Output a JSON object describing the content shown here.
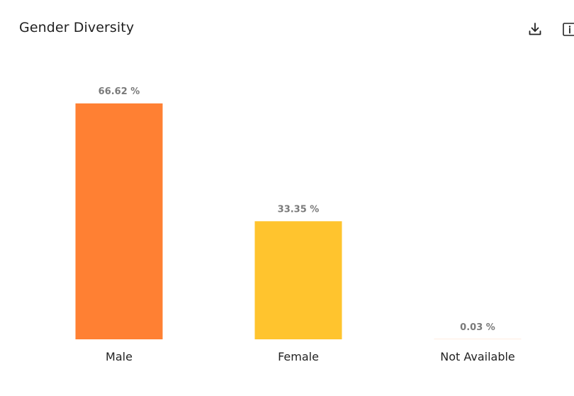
{
  "header": {
    "title": "Gender Diversity"
  },
  "icons": {
    "download": "download-icon",
    "info": "info-icon"
  },
  "colors": {
    "male": "#FF8033",
    "female": "#FFC42E",
    "not_available": "#FF8033",
    "value_label": "#7a7a7a"
  },
  "chart_data": {
    "type": "bar",
    "title": "Gender Diversity",
    "xlabel": "",
    "ylabel": "",
    "categories": [
      "Male",
      "Female",
      "Not Available"
    ],
    "values": [
      66.62,
      33.35,
      0.03
    ],
    "value_labels": [
      "66.62 %",
      "33.35 %",
      "0.03 %"
    ],
    "ylim": [
      0,
      66.62
    ],
    "grid": false,
    "legend": "none"
  }
}
